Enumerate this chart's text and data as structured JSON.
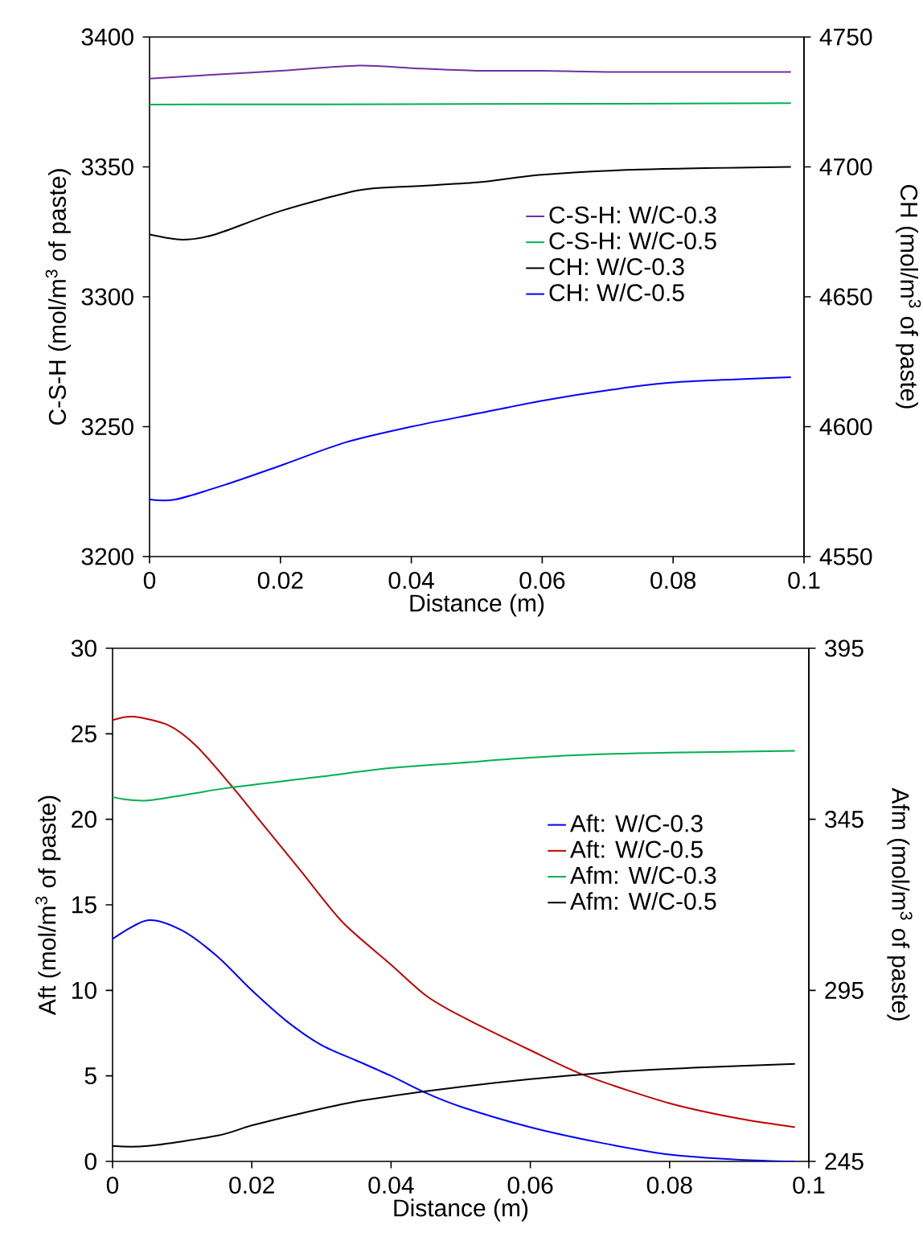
{
  "chart_data": [
    {
      "type": "line",
      "xlabel": "Distance (m)",
      "ylabel": "C-S-H (mol/m$^{3}$ of paste)",
      "y2label": "CH (mol/m$^{3}$ of paste)",
      "xlim": [
        0,
        0.1
      ],
      "xticks": [
        0,
        0.02,
        0.04,
        0.06,
        0.08,
        0.1
      ],
      "ylim": [
        3200,
        3400
      ],
      "yticks": [
        3200,
        3250,
        3300,
        3350,
        3400
      ],
      "y2lim": [
        4550,
        4750
      ],
      "y2ticks": [
        4550,
        4600,
        4650,
        4700,
        4750
      ],
      "grid": false,
      "legend": "center right",
      "marker": "none",
      "line_style": "solid",
      "series": [
        {
          "name": "C-S-H: W/C-0.3",
          "color": "#7030a0",
          "x": [
            0,
            0.01,
            0.02,
            0.032,
            0.04,
            0.05,
            0.06,
            0.07,
            0.08,
            0.098
          ],
          "values": [
            3384,
            3385.5,
            3387,
            3389,
            3388,
            3387,
            3387,
            3386.5,
            3386.5,
            3386.5
          ]
        },
        {
          "name": "C-S-H: W/C-0.5",
          "color": "#00b050",
          "x": [
            0,
            0.05,
            0.098
          ],
          "values": [
            3374,
            3374.2,
            3374.5
          ]
        },
        {
          "name": "CH: W/C-0.3",
          "color": "#000000",
          "axis": "y2",
          "x": [
            0,
            0.005,
            0.01,
            0.02,
            0.032,
            0.04,
            0.05,
            0.06,
            0.075,
            0.098
          ],
          "values": [
            4674,
            4672,
            4674,
            4683,
            4691,
            4692.5,
            4694,
            4697,
            4699,
            4700
          ]
        },
        {
          "name": "CH: W/C-0.5",
          "color": "#0000ff",
          "axis": "y2",
          "x": [
            0,
            0.004,
            0.012,
            0.02,
            0.03,
            0.04,
            0.05,
            0.06,
            0.07,
            0.08,
            0.098
          ],
          "values": [
            4572,
            4572,
            4578,
            4585,
            4594,
            4600,
            4605,
            4610,
            4614,
            4617,
            4619
          ]
        }
      ]
    },
    {
      "type": "line",
      "xlabel": "Distance (m)",
      "ylabel": "Aft (mol/m$^{3}$ of paste)",
      "y2label": "Afm (mol/m$^{3}$ of paste)",
      "xlim": [
        0,
        0.1
      ],
      "xticks": [
        0,
        0.02,
        0.04,
        0.06,
        0.08,
        0.1
      ],
      "ylim": [
        0,
        30
      ],
      "yticks": [
        0,
        5,
        10,
        15,
        20,
        25,
        30
      ],
      "y2lim": [
        245,
        395
      ],
      "y2ticks": [
        245,
        295,
        345,
        395
      ],
      "grid": false,
      "legend": "center right",
      "marker": "none",
      "line_style": "solid",
      "series": [
        {
          "name": "Aft: W/C-0.3",
          "color": "#0000ff",
          "x": [
            0,
            0.005,
            0.01,
            0.015,
            0.02,
            0.025,
            0.03,
            0.035,
            0.04,
            0.045,
            0.05,
            0.06,
            0.07,
            0.08,
            0.09,
            0.098
          ],
          "values": [
            13,
            14.1,
            13.5,
            12,
            10,
            8.2,
            6.8,
            5.9,
            5,
            4,
            3.2,
            2,
            1.1,
            0.4,
            0.1,
            0
          ]
        },
        {
          "name": "Aft: W/C-0.5",
          "color": "#c00000",
          "x": [
            0,
            0.003,
            0.008,
            0.012,
            0.017,
            0.021,
            0.027,
            0.033,
            0.04,
            0.045,
            0.05,
            0.06,
            0.068,
            0.08,
            0.09,
            0.098
          ],
          "values": [
            25.8,
            26,
            25.5,
            24.3,
            22,
            20,
            17,
            14,
            11.5,
            9.7,
            8.5,
            6.5,
            5,
            3.4,
            2.5,
            2
          ]
        },
        {
          "name": "Afm: W/C-0.3",
          "color": "#00b050",
          "axis": "y2",
          "x": [
            0,
            0.005,
            0.016,
            0.03,
            0.04,
            0.05,
            0.06,
            0.07,
            0.08,
            0.098
          ],
          "values": [
            351.5,
            350.5,
            354,
            357.5,
            360,
            361.5,
            363,
            364,
            364.5,
            365
          ]
        },
        {
          "name": "Afm: W/C-0.5",
          "color": "#000000",
          "axis": "y2",
          "x": [
            0,
            0.005,
            0.015,
            0.02,
            0.027,
            0.035,
            0.045,
            0.055,
            0.065,
            0.075,
            0.085,
            0.098
          ],
          "values": [
            249.5,
            249.5,
            252.5,
            255.5,
            259,
            262.5,
            265.5,
            268,
            270,
            271.5,
            272.5,
            273.5
          ]
        }
      ]
    }
  ]
}
